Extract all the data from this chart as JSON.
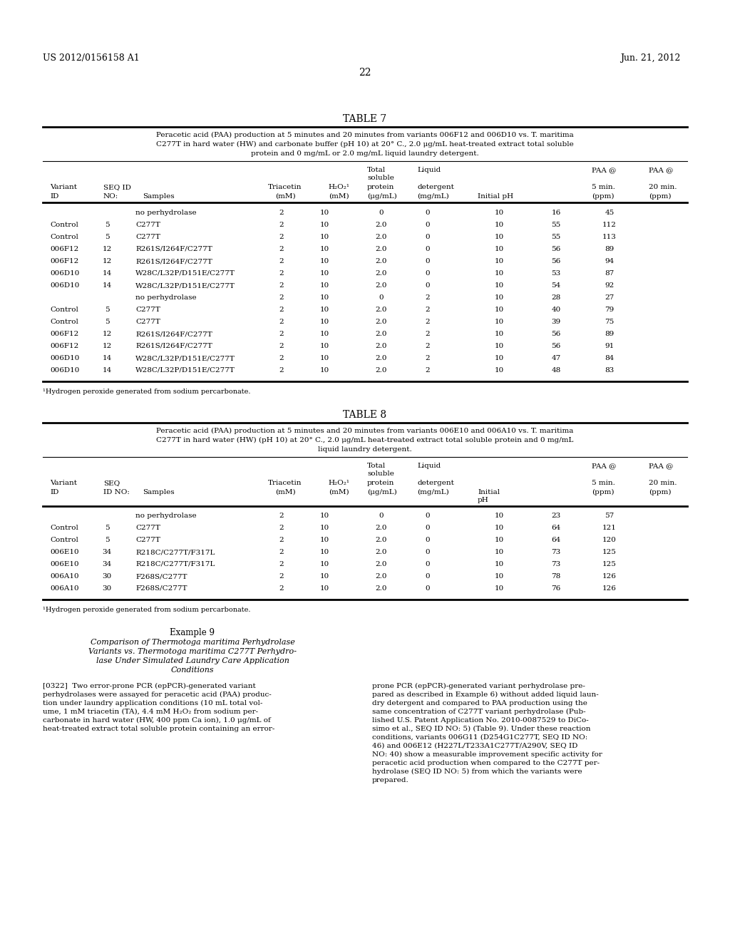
{
  "patent_left": "US 2012/0156158 A1",
  "patent_right": "Jun. 21, 2012",
  "page_number": "22",
  "table7_title": "TABLE 7",
  "table7_caption": "Peracetic acid (PAA) production at 5 minutes and 20 minutes from variants 006F12 and 006D10 vs. T. maritima\nC277T in hard water (HW) and carbonate buffer (pH 10) at 20° C., 2.0 μg/mL heat-treated extract total soluble\nprotein and 0 mg/mL or 2.0 mg/mL liquid laundry detergent.",
  "table7_headers": [
    "Variant",
    "SEQ ID",
    "",
    "Triacetin",
    "H₂O₂¹",
    "Total\nsoluble\nprotein",
    "Liquid\ndetergent",
    "",
    "PAA @\n5 min.",
    "PAA @\n20 min."
  ],
  "table7_subheaders": [
    "ID",
    "NO:",
    "Samples",
    "(mM)",
    "(mM)",
    "(μg/mL)",
    "(mg/mL)",
    "Initial pH",
    "(ppm)",
    "(ppm)"
  ],
  "table7_data": [
    [
      "",
      "",
      "no perhydrolase",
      "2",
      "10",
      "0",
      "0",
      "10",
      "16",
      "45"
    ],
    [
      "Control",
      "5",
      "C277T",
      "2",
      "10",
      "2.0",
      "0",
      "10",
      "55",
      "112"
    ],
    [
      "Control",
      "5",
      "C277T",
      "2",
      "10",
      "2.0",
      "0",
      "10",
      "55",
      "113"
    ],
    [
      "006F12",
      "12",
      "R261S/I264F/C277T",
      "2",
      "10",
      "2.0",
      "0",
      "10",
      "56",
      "89"
    ],
    [
      "006F12",
      "12",
      "R261S/I264F/C277T",
      "2",
      "10",
      "2.0",
      "0",
      "10",
      "56",
      "94"
    ],
    [
      "006D10",
      "14",
      "W28C/L32P/D151E/C277T",
      "2",
      "10",
      "2.0",
      "0",
      "10",
      "53",
      "87"
    ],
    [
      "006D10",
      "14",
      "W28C/L32P/D151E/C277T",
      "2",
      "10",
      "2.0",
      "0",
      "10",
      "54",
      "92"
    ],
    [
      "",
      "",
      "no perhydrolase",
      "2",
      "10",
      "0",
      "2",
      "10",
      "28",
      "27"
    ],
    [
      "Control",
      "5",
      "C277T",
      "2",
      "10",
      "2.0",
      "2",
      "10",
      "40",
      "79"
    ],
    [
      "Control",
      "5",
      "C277T",
      "2",
      "10",
      "2.0",
      "2",
      "10",
      "39",
      "75"
    ],
    [
      "006F12",
      "12",
      "R261S/I264F/C277T",
      "2",
      "10",
      "2.0",
      "2",
      "10",
      "56",
      "89"
    ],
    [
      "006F12",
      "12",
      "R261S/I264F/C277T",
      "2",
      "10",
      "2.0",
      "2",
      "10",
      "56",
      "91"
    ],
    [
      "006D10",
      "14",
      "W28C/L32P/D151E/C277T",
      "2",
      "10",
      "2.0",
      "2",
      "10",
      "47",
      "84"
    ],
    [
      "006D10",
      "14",
      "W28C/L32P/D151E/C277T",
      "2",
      "10",
      "2.0",
      "2",
      "10",
      "48",
      "83"
    ]
  ],
  "table7_footnote": "¹Hydrogen peroxide generated from sodium percarbonate.",
  "table8_title": "TABLE 8",
  "table8_caption": "Peracetic acid (PAA) production at 5 minutes and 20 minutes from variants 006E10 and 006A10 vs. T. maritima\nC277T in hard water (HW) (pH 10) at 20° C., 2.0 μg/mL heat-treated extract total soluble protein and 0 mg/mL\nliquid laundry detergent.",
  "table8_subheaders": [
    "ID",
    "ID NO:",
    "Samples",
    "(mM)",
    "(mM)",
    "(μg/mL)",
    "(mg/mL)",
    "pH",
    "(ppm)",
    "(ppm)"
  ],
  "table8_data": [
    [
      "",
      "",
      "no perhydrolase",
      "2",
      "10",
      "0",
      "0",
      "10",
      "23",
      "57"
    ],
    [
      "Control",
      "5",
      "C277T",
      "2",
      "10",
      "2.0",
      "0",
      "10",
      "64",
      "121"
    ],
    [
      "Control",
      "5",
      "C277T",
      "2",
      "10",
      "2.0",
      "0",
      "10",
      "64",
      "120"
    ],
    [
      "006E10",
      "34",
      "R218C/C277T/F317L",
      "2",
      "10",
      "2.0",
      "0",
      "10",
      "73",
      "125"
    ],
    [
      "006E10",
      "34",
      "R218C/C277T/F317L",
      "2",
      "10",
      "2.0",
      "0",
      "10",
      "73",
      "125"
    ],
    [
      "006A10",
      "30",
      "F268S/C277T",
      "2",
      "10",
      "2.0",
      "0",
      "10",
      "78",
      "126"
    ],
    [
      "006A10",
      "30",
      "F268S/C277T",
      "2",
      "10",
      "2.0",
      "0",
      "10",
      "76",
      "126"
    ]
  ],
  "table8_footnote": "¹Hydrogen peroxide generated from sodium percarbonate.",
  "example9_title": "Example 9",
  "example9_subtitle": "Comparison of Thermotoga maritima Perhydrolase\nVariants vs. Thermotoga maritima C277T Perhydro-\nlase Under Simulated Laundry Care Application\nConditions",
  "example9_para322": "[0322]  Two error-prone PCR (epPCR)-generated variant\nperhydrolases were assayed for peracetic acid (PAA) produc-\ntion under laundry application conditions (10 mL total vol-\nume, 1 mM triacetin (TA), 4.4 mM H₂O₂ from sodium per-\ncarbonate in hard water (HW, 400 ppm Ca ion), 1.0 μg/mL of\nheat-treated extract total soluble protein containing an error-",
  "example9_para322_right": "prone PCR (epPCR)-generated variant perhydrolase pre-\npared as described in Example 6) without added liquid laun-\ndry detergent and compared to PAA production using the\nsame concentration of C277T variant perhydrolase (Pub-\nlished U.S. Patent Application No. 2010-0087529 to DiCo-\nsimo et al., SEQ ID NO: 5) (Table 9). Under these reaction\nconditions, variants 006G11 (D254G1C277T, SEQ ID NO:\n46) and 006E12 (H227L/T233A1C277T/A290V, SEQ ID\nNO: 40) show a measurable improvement specific activity for\nperacetic acid production when compared to the C277T per-\nhydrolase (SEQ ID NO: 5) from which the variants were\nprepared.",
  "bg_color": "#ffffff",
  "text_color": "#000000",
  "line_color": "#000000"
}
